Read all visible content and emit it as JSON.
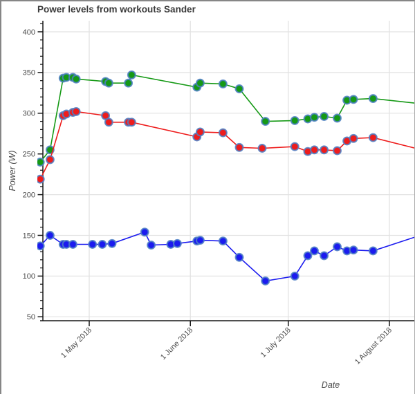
{
  "chart_data": {
    "type": "line",
    "title": "Power levels from workouts Sander",
    "xlabel": "Date",
    "ylabel": "Power (W)",
    "grid": true,
    "legend": "none",
    "ylim": [
      44,
      413
    ],
    "yticks": [
      50,
      100,
      150,
      200,
      250,
      300,
      350,
      400
    ],
    "y_minor_tick_step": 10,
    "xlim": [
      "2018-04-17",
      "2018-08-09"
    ],
    "xticks": [
      {
        "date": "2018-05-01",
        "label": "1 May 2018"
      },
      {
        "date": "2018-06-01",
        "label": "1 June 2018"
      },
      {
        "date": "2018-07-01",
        "label": "1 July 2018"
      },
      {
        "date": "2018-08-01",
        "label": "1 August 2018"
      }
    ],
    "colors": {
      "grid": "#e2e2e2",
      "axis": "#161616",
      "tick_label": "#4a4a4a",
      "title": "#3a3a3a",
      "marker_outline": "#4e7fc4"
    },
    "series": [
      {
        "name": "green",
        "color": "#159915",
        "points": [
          [
            "2018-04-16",
            240
          ],
          [
            "2018-04-19",
            255
          ],
          [
            "2018-04-23",
            343
          ],
          [
            "2018-04-24",
            344
          ],
          [
            "2018-04-26",
            344
          ],
          [
            "2018-04-27",
            342
          ],
          [
            "2018-05-06",
            339
          ],
          [
            "2018-05-07",
            337
          ],
          [
            "2018-05-13",
            337
          ],
          [
            "2018-05-14",
            347
          ],
          [
            "2018-06-03",
            332
          ],
          [
            "2018-06-04",
            337
          ],
          [
            "2018-06-11",
            336
          ],
          [
            "2018-06-16",
            330
          ],
          [
            "2018-06-24",
            290
          ],
          [
            "2018-07-03",
            291
          ],
          [
            "2018-07-07",
            293
          ],
          [
            "2018-07-09",
            295
          ],
          [
            "2018-07-12",
            296
          ],
          [
            "2018-07-16",
            294
          ],
          [
            "2018-07-19",
            316
          ],
          [
            "2018-07-21",
            317
          ],
          [
            "2018-07-27",
            318
          ]
        ],
        "tail": [
          "2018-08-12",
          311
        ]
      },
      {
        "name": "red",
        "color": "#ee1c1c",
        "points": [
          [
            "2018-04-16",
            219
          ],
          [
            "2018-04-19",
            243
          ],
          [
            "2018-04-23",
            297
          ],
          [
            "2018-04-24",
            299
          ],
          [
            "2018-04-26",
            301
          ],
          [
            "2018-04-27",
            302
          ],
          [
            "2018-05-06",
            297
          ],
          [
            "2018-05-07",
            289
          ],
          [
            "2018-05-13",
            289
          ],
          [
            "2018-05-14",
            289
          ],
          [
            "2018-06-03",
            271
          ],
          [
            "2018-06-04",
            277
          ],
          [
            "2018-06-11",
            276
          ],
          [
            "2018-06-16",
            258
          ],
          [
            "2018-06-23",
            257
          ],
          [
            "2018-07-03",
            259
          ],
          [
            "2018-07-07",
            253
          ],
          [
            "2018-07-09",
            255
          ],
          [
            "2018-07-12",
            255
          ],
          [
            "2018-07-16",
            254
          ],
          [
            "2018-07-19",
            266
          ],
          [
            "2018-07-21",
            269
          ],
          [
            "2018-07-27",
            270
          ]
        ],
        "tail": [
          "2018-08-12",
          254
        ]
      },
      {
        "name": "blue",
        "color": "#1b1bef",
        "points": [
          [
            "2018-04-16",
            137
          ],
          [
            "2018-04-19",
            150
          ],
          [
            "2018-04-23",
            139
          ],
          [
            "2018-04-24",
            139
          ],
          [
            "2018-04-26",
            139
          ],
          [
            "2018-05-02",
            139
          ],
          [
            "2018-05-05",
            139
          ],
          [
            "2018-05-08",
            140
          ],
          [
            "2018-05-18",
            154
          ],
          [
            "2018-05-20",
            138
          ],
          [
            "2018-05-26",
            139
          ],
          [
            "2018-05-28",
            140
          ],
          [
            "2018-06-03",
            143
          ],
          [
            "2018-06-04",
            144
          ],
          [
            "2018-06-11",
            143
          ],
          [
            "2018-06-16",
            123
          ],
          [
            "2018-06-24",
            94
          ],
          [
            "2018-07-03",
            100
          ],
          [
            "2018-07-07",
            125
          ],
          [
            "2018-07-09",
            131
          ],
          [
            "2018-07-12",
            125
          ],
          [
            "2018-07-16",
            136
          ],
          [
            "2018-07-19",
            131
          ],
          [
            "2018-07-21",
            132
          ],
          [
            "2018-07-27",
            131
          ]
        ],
        "tail": [
          "2018-08-12",
          152
        ]
      }
    ]
  }
}
